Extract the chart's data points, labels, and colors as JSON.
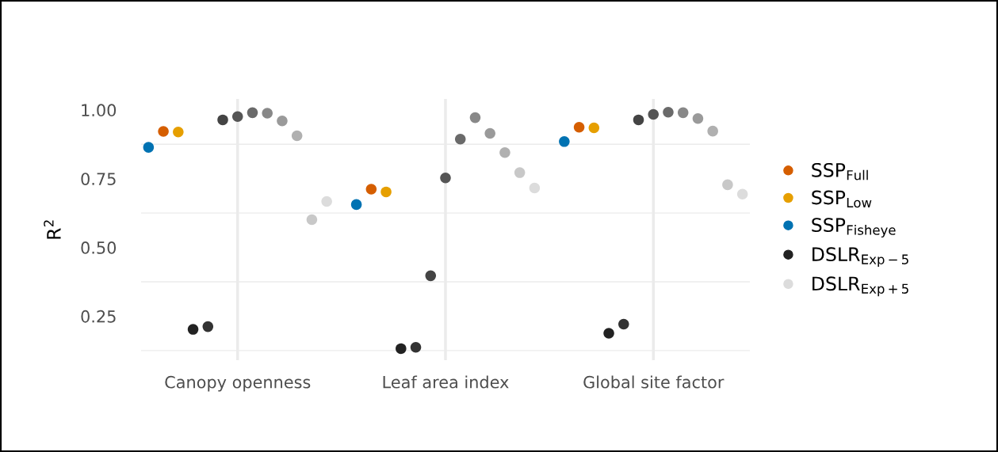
{
  "chart_data": {
    "type": "scatter",
    "categories": [
      null,
      null,
      null,
      null,
      null,
      null,
      "Canopy openness",
      null,
      null,
      null,
      null,
      null,
      null,
      null,
      null,
      null,
      null,
      null,
      null,
      null,
      "Leaf area index",
      null,
      null,
      null,
      null,
      null,
      null,
      null,
      null,
      null,
      null,
      null,
      null,
      null,
      "Global site factor",
      null,
      null,
      null,
      null,
      null,
      null
    ],
    "ylabel": "R$^{2}$",
    "ylim": [
      0.09,
      1.04
    ],
    "yticks": [
      {
        "value": 0.125,
        "label": null
      },
      {
        "value": 0.25,
        "label": "0.25"
      },
      {
        "value": 0.375,
        "label": null
      },
      {
        "value": 0.5,
        "label": "0.50"
      },
      {
        "value": 0.625,
        "label": null
      },
      {
        "value": 0.75,
        "label": "0.75"
      },
      {
        "value": 0.875,
        "label": null
      },
      {
        "value": 1.0,
        "label": "1.00"
      }
    ],
    "grid": true,
    "marker": "circle",
    "legend": "right",
    "series": [
      {
        "name": "SSP$_{Fisheye}$",
        "color": "#0072b2",
        "values": [
          0.864,
          null,
          null,
          null,
          null,
          null,
          null,
          null,
          null,
          null,
          null,
          null,
          null,
          null,
          0.656,
          null,
          null,
          null,
          null,
          null,
          null,
          null,
          null,
          null,
          null,
          null,
          null,
          null,
          0.885,
          null,
          null,
          null,
          null,
          null,
          null,
          null,
          null,
          null,
          null,
          null,
          null
        ]
      },
      {
        "name": "SSP$_{Full}$",
        "color": "#d55e00",
        "values": [
          null,
          0.922,
          null,
          null,
          null,
          null,
          null,
          null,
          null,
          null,
          null,
          null,
          null,
          null,
          null,
          0.712,
          null,
          null,
          null,
          null,
          null,
          null,
          null,
          null,
          null,
          null,
          null,
          null,
          null,
          0.937,
          null,
          null,
          null,
          null,
          null,
          null,
          null,
          null,
          null,
          null,
          null
        ]
      },
      {
        "name": "SSP$_{Low}$",
        "color": "#e69f00",
        "values": [
          null,
          null,
          0.92,
          null,
          null,
          null,
          null,
          null,
          null,
          null,
          null,
          null,
          null,
          null,
          null,
          null,
          0.702,
          null,
          null,
          null,
          null,
          null,
          null,
          null,
          null,
          null,
          null,
          null,
          null,
          null,
          0.935,
          null,
          null,
          null,
          null,
          null,
          null,
          null,
          null,
          null,
          null
        ]
      },
      {
        "name": "DSLR$_{Exp−5}$",
        "color": "#222222",
        "values": [
          null,
          null,
          null,
          0.202,
          null,
          null,
          null,
          null,
          null,
          null,
          null,
          null,
          null,
          null,
          null,
          null,
          null,
          0.132,
          null,
          null,
          null,
          null,
          null,
          null,
          null,
          null,
          null,
          null,
          null,
          null,
          null,
          0.188,
          null,
          null,
          null,
          null,
          null,
          null,
          null,
          null,
          null
        ]
      },
      {
        "color": "#333333",
        "values": [
          null,
          null,
          null,
          null,
          0.212,
          null,
          null,
          null,
          null,
          null,
          null,
          null,
          null,
          null,
          null,
          null,
          null,
          null,
          0.137,
          null,
          null,
          null,
          null,
          null,
          null,
          null,
          null,
          null,
          null,
          null,
          null,
          null,
          0.221,
          null,
          null,
          null,
          null,
          null,
          null,
          null,
          null
        ]
      },
      {
        "color": "#444444",
        "values": [
          null,
          null,
          null,
          null,
          null,
          0.964,
          null,
          null,
          null,
          null,
          null,
          null,
          null,
          null,
          null,
          null,
          null,
          null,
          null,
          0.397,
          null,
          null,
          null,
          null,
          null,
          null,
          null,
          null,
          null,
          null,
          null,
          null,
          null,
          0.964,
          null,
          null,
          null,
          null,
          null,
          null,
          null
        ]
      },
      {
        "color": "#555555",
        "values": [
          null,
          null,
          null,
          null,
          null,
          null,
          0.976,
          null,
          null,
          null,
          null,
          null,
          null,
          null,
          null,
          null,
          null,
          null,
          null,
          null,
          0.753,
          null,
          null,
          null,
          null,
          null,
          null,
          null,
          null,
          null,
          null,
          null,
          null,
          null,
          0.984,
          null,
          null,
          null,
          null,
          null,
          null
        ]
      },
      {
        "color": "#6a6a6a",
        "values": [
          null,
          null,
          null,
          null,
          null,
          null,
          null,
          0.99,
          null,
          null,
          null,
          null,
          null,
          null,
          null,
          null,
          null,
          null,
          null,
          null,
          null,
          0.894,
          null,
          null,
          null,
          null,
          null,
          null,
          null,
          null,
          null,
          null,
          null,
          null,
          null,
          0.992,
          null,
          null,
          null,
          null,
          null
        ]
      },
      {
        "color": "#888888",
        "values": [
          null,
          null,
          null,
          null,
          null,
          null,
          null,
          null,
          0.988,
          null,
          null,
          null,
          null,
          null,
          null,
          null,
          null,
          null,
          null,
          null,
          null,
          null,
          0.972,
          null,
          null,
          null,
          null,
          null,
          null,
          null,
          null,
          null,
          null,
          null,
          null,
          null,
          0.99,
          null,
          null,
          null,
          null
        ]
      },
      {
        "color": "#9a9a9a",
        "values": [
          null,
          null,
          null,
          null,
          null,
          null,
          null,
          null,
          null,
          0.96,
          null,
          null,
          null,
          null,
          null,
          null,
          null,
          null,
          null,
          null,
          null,
          null,
          null,
          0.915,
          null,
          null,
          null,
          null,
          null,
          null,
          null,
          null,
          null,
          null,
          null,
          null,
          null,
          0.969,
          null,
          null,
          null
        ]
      },
      {
        "color": "#b0b0b0",
        "values": [
          null,
          null,
          null,
          null,
          null,
          null,
          null,
          null,
          null,
          null,
          0.906,
          null,
          null,
          null,
          null,
          null,
          null,
          null,
          null,
          null,
          null,
          null,
          null,
          null,
          0.845,
          null,
          null,
          null,
          null,
          null,
          null,
          null,
          null,
          null,
          null,
          null,
          null,
          null,
          0.923,
          null,
          null
        ]
      },
      {
        "color": "#c8c8c8",
        "values": [
          null,
          null,
          null,
          null,
          null,
          null,
          null,
          null,
          null,
          null,
          null,
          0.601,
          null,
          null,
          null,
          null,
          null,
          null,
          null,
          null,
          null,
          null,
          null,
          null,
          null,
          0.772,
          null,
          null,
          null,
          null,
          null,
          null,
          null,
          null,
          null,
          null,
          null,
          null,
          null,
          0.728,
          null
        ]
      },
      {
        "name": "DSLR$_{Exp+5}$",
        "color": "#dcdcdc",
        "values": [
          null,
          null,
          null,
          null,
          null,
          null,
          null,
          null,
          null,
          null,
          null,
          null,
          0.667,
          null,
          null,
          null,
          null,
          null,
          null,
          null,
          null,
          null,
          null,
          null,
          null,
          null,
          0.716,
          null,
          null,
          null,
          null,
          null,
          null,
          null,
          null,
          null,
          null,
          null,
          null,
          null,
          0.694
        ]
      }
    ]
  }
}
